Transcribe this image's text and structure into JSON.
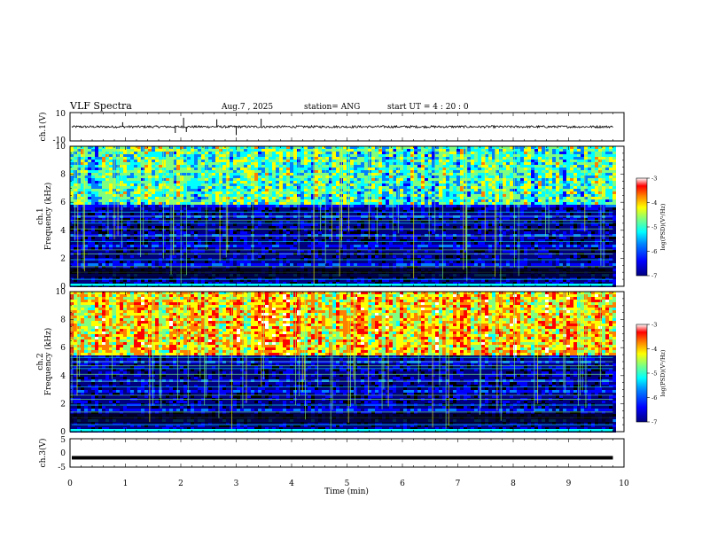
{
  "header": {
    "title": "VLF Spectra",
    "date": "Aug.7  , 2025",
    "station": "station= ANG",
    "start": "start  UT =   4 : 20 : 0"
  },
  "chart_data": [
    {
      "type": "line",
      "name": "ch1-waveform",
      "ylabel": "ch.1(V)",
      "ylim": [
        -10,
        10
      ],
      "yticks": [
        "10",
        "-10"
      ],
      "baseline_v": 0
    },
    {
      "type": "heatmap",
      "name": "ch1-spectrogram",
      "ylabel_line1": "ch.1",
      "ylabel_line2": "Frequency (kHz)",
      "ylim": [
        0,
        10
      ],
      "yticks": [
        "0",
        "2",
        "4",
        "6",
        "8",
        "10"
      ],
      "emission_above_khz": 6,
      "colorbar": {
        "label": "log(PSD)(V²/Hz)",
        "ticks": [
          "-3",
          "-4",
          "-5",
          "-6",
          "-7"
        ],
        "range": [
          -7,
          -3
        ]
      }
    },
    {
      "type": "heatmap",
      "name": "ch2-spectrogram",
      "ylabel_line1": "ch.2",
      "ylabel_line2": "Frequency (kHz)",
      "ylim": [
        0,
        10
      ],
      "yticks": [
        "0",
        "2",
        "4",
        "6",
        "8",
        "10"
      ],
      "emission_above_khz": 5.5,
      "colorbar": {
        "label": "log(PSD)(V²/Hz)",
        "ticks": [
          "-3",
          "-4",
          "-5",
          "-6",
          "-7"
        ],
        "range": [
          -7,
          -3
        ]
      }
    },
    {
      "type": "line",
      "name": "ch3-waveform",
      "ylabel": "ch.3(V)",
      "ylim": [
        -5,
        5
      ],
      "yticks": [
        "5",
        "0",
        "-5"
      ],
      "level_v": -1.7
    }
  ],
  "xaxis": {
    "label": "Time (min)",
    "range": [
      0,
      10
    ],
    "data_end_min": 9.8,
    "ticks": [
      "0",
      "1",
      "2",
      "3",
      "4",
      "5",
      "6",
      "7",
      "8",
      "9",
      "10"
    ]
  },
  "colormap": [
    "#000000",
    "#00007f",
    "#0000ff",
    "#007fff",
    "#00ffff",
    "#7fff7f",
    "#ffff00",
    "#ff7f00",
    "#ff0000",
    "#ffffff"
  ]
}
